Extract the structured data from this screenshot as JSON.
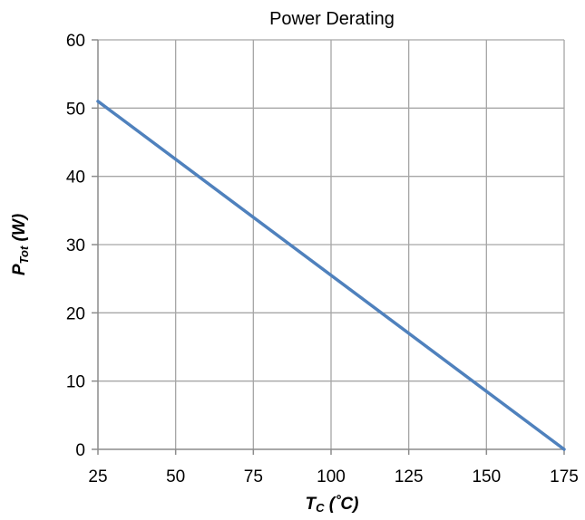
{
  "chart_data": {
    "type": "line",
    "title": "Power Derating",
    "xlabel": "T_C (˚C)",
    "xlabel_main": "T",
    "xlabel_sub": "C",
    "xlabel_unit": " (˚C)",
    "ylabel": "P_Tot (W)",
    "ylabel_main": "P",
    "ylabel_sub": "Tot",
    "ylabel_unit": " (W)",
    "xlim": [
      25,
      175
    ],
    "ylim": [
      0,
      60
    ],
    "x_ticks": [
      25,
      50,
      75,
      100,
      125,
      150,
      175
    ],
    "y_ticks": [
      0,
      10,
      20,
      30,
      40,
      50,
      60
    ],
    "grid": true,
    "legend": "none",
    "series": [
      {
        "color": "#4f81bd",
        "x": [
          25,
          175
        ],
        "y": [
          51,
          0
        ]
      }
    ]
  }
}
